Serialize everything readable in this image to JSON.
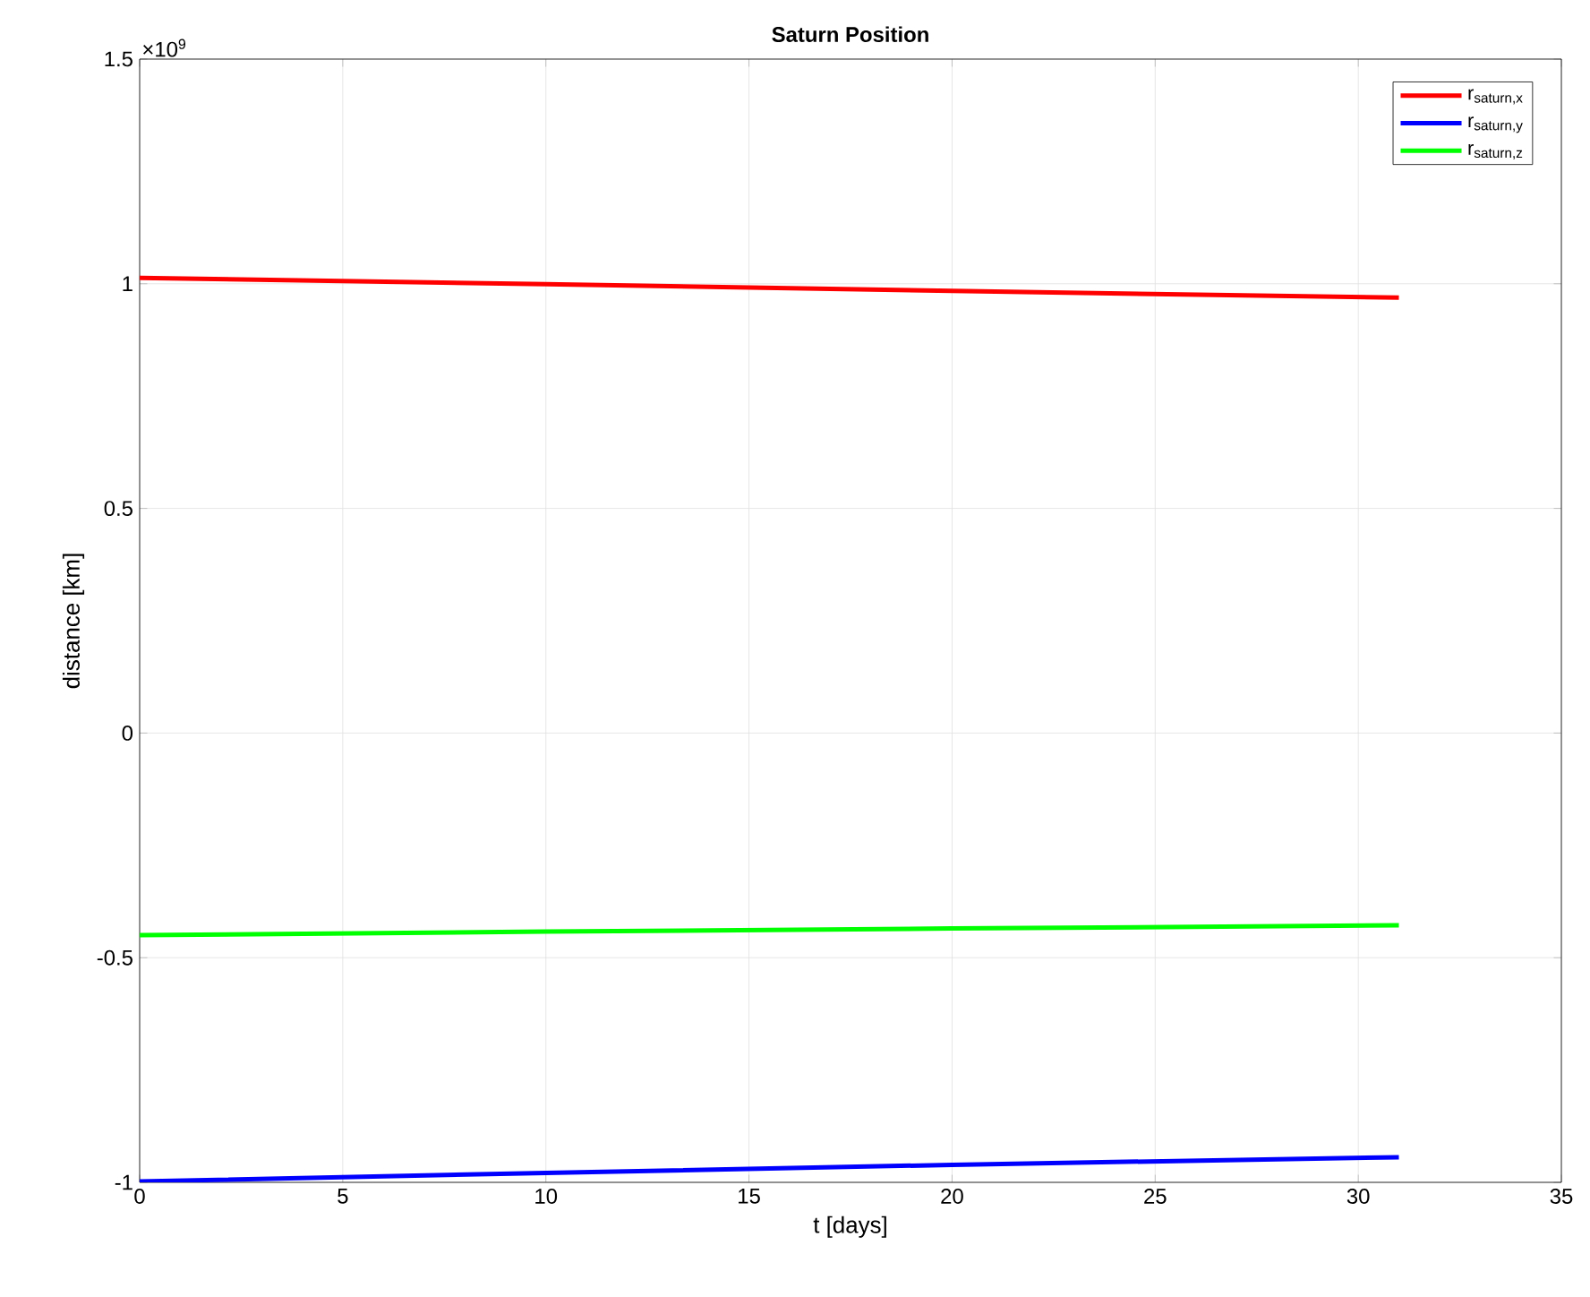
{
  "chart_data": {
    "type": "line",
    "title": "Saturn Position",
    "xlabel": "t [days]",
    "ylabel": "distance [km]",
    "annotations": [
      "×10$^{9}$"
    ],
    "x": [
      0,
      10,
      20,
      31
    ],
    "series": [
      {
        "name": "r$_{saturn,x}$",
        "color": "#ff0000",
        "values": [
          1.013,
          0.999,
          0.984,
          0.969
        ]
      },
      {
        "name": "r$_{saturn,y}$",
        "color": "#0000ff",
        "values": [
          -0.998,
          -0.979,
          -0.961,
          -0.944
        ]
      },
      {
        "name": "r$_{saturn,z}$",
        "color": "#00ff00",
        "values": [
          -0.45,
          -0.442,
          -0.435,
          -0.428
        ]
      }
    ],
    "xlim": [
      0,
      35
    ],
    "xticks": [
      0,
      5,
      10,
      15,
      20,
      25,
      30,
      35
    ],
    "ylim": [
      -1,
      1.5
    ],
    "yticks": [
      -1,
      -0.5,
      0,
      0.5,
      1,
      1.5
    ],
    "grid": true,
    "legend": "top right",
    "marker": "none",
    "line_style": "solid"
  }
}
